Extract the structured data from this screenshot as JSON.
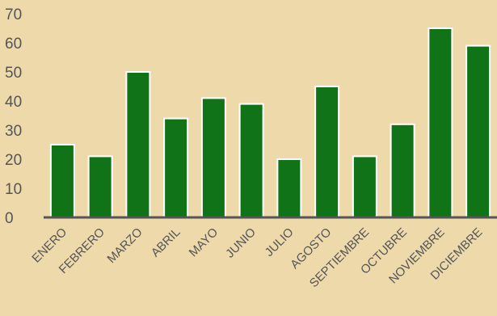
{
  "chart_data": {
    "type": "bar",
    "categories": [
      "ENERO",
      "FEBRERO",
      "MARZO",
      "ABRIL",
      "MAYO",
      "JUNIO",
      "JULIO",
      "AGOSTO",
      "SEPTIEMBRE",
      "OCTUBRE",
      "NOVIEMBRE",
      "DICIEMBRE"
    ],
    "values": [
      25,
      21,
      50,
      34,
      41,
      39,
      20,
      45,
      21,
      32,
      65,
      59
    ],
    "yticks": [
      "0",
      "10",
      "20",
      "30",
      "40",
      "50",
      "60",
      "70"
    ],
    "ylim": [
      0,
      70
    ],
    "grid": false,
    "legend": "none",
    "colors": {
      "bar": "#117317",
      "bar_outline": "#ffffff",
      "background": "#eed9ab",
      "text": "#555555"
    }
  }
}
